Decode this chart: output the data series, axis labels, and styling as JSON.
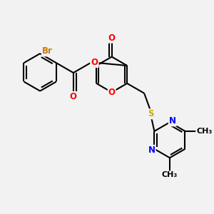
{
  "bg_color": "#f2f2f2",
  "bond_color": "#000000",
  "bond_width": 1.5,
  "atom_colors": {
    "O": "#ff0000",
    "N": "#0000ff",
    "S": "#ccaa00",
    "Br": "#cc7700",
    "C": "#000000"
  },
  "font_size": 8.5,
  "fig_w": 3.0,
  "fig_h": 3.0,
  "dpi": 100
}
